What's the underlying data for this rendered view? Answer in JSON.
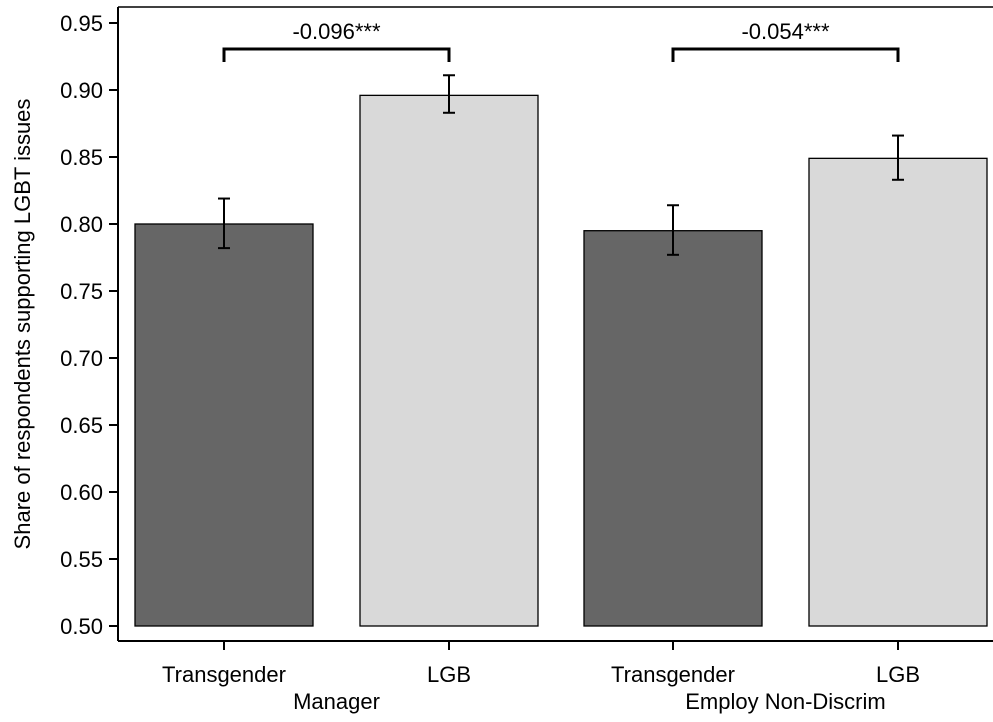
{
  "chart_data": {
    "type": "bar",
    "ylabel": "Share of respondents supporting LGBT issues",
    "ylim": [
      0.5,
      0.96
    ],
    "yticks": [
      "0.50",
      "0.55",
      "0.60",
      "0.65",
      "0.70",
      "0.75",
      "0.80",
      "0.85",
      "0.90",
      "0.95"
    ],
    "grid": false,
    "groups": [
      {
        "label": "Manager",
        "annotation": "-0.096***",
        "bars": [
          {
            "label": "Transgender",
            "value": 0.8,
            "ci_low": 0.782,
            "ci_high": 0.819,
            "color": "#666666"
          },
          {
            "label": "LGB",
            "value": 0.896,
            "ci_low": 0.883,
            "ci_high": 0.911,
            "color": "#d9d9d9"
          }
        ]
      },
      {
        "label": "Employ Non-Discrim",
        "annotation": "-0.054***",
        "bars": [
          {
            "label": "Transgender",
            "value": 0.795,
            "ci_low": 0.777,
            "ci_high": 0.814,
            "color": "#666666"
          },
          {
            "label": "LGB",
            "value": 0.849,
            "ci_low": 0.833,
            "ci_high": 0.866,
            "color": "#d9d9d9"
          }
        ]
      }
    ]
  }
}
